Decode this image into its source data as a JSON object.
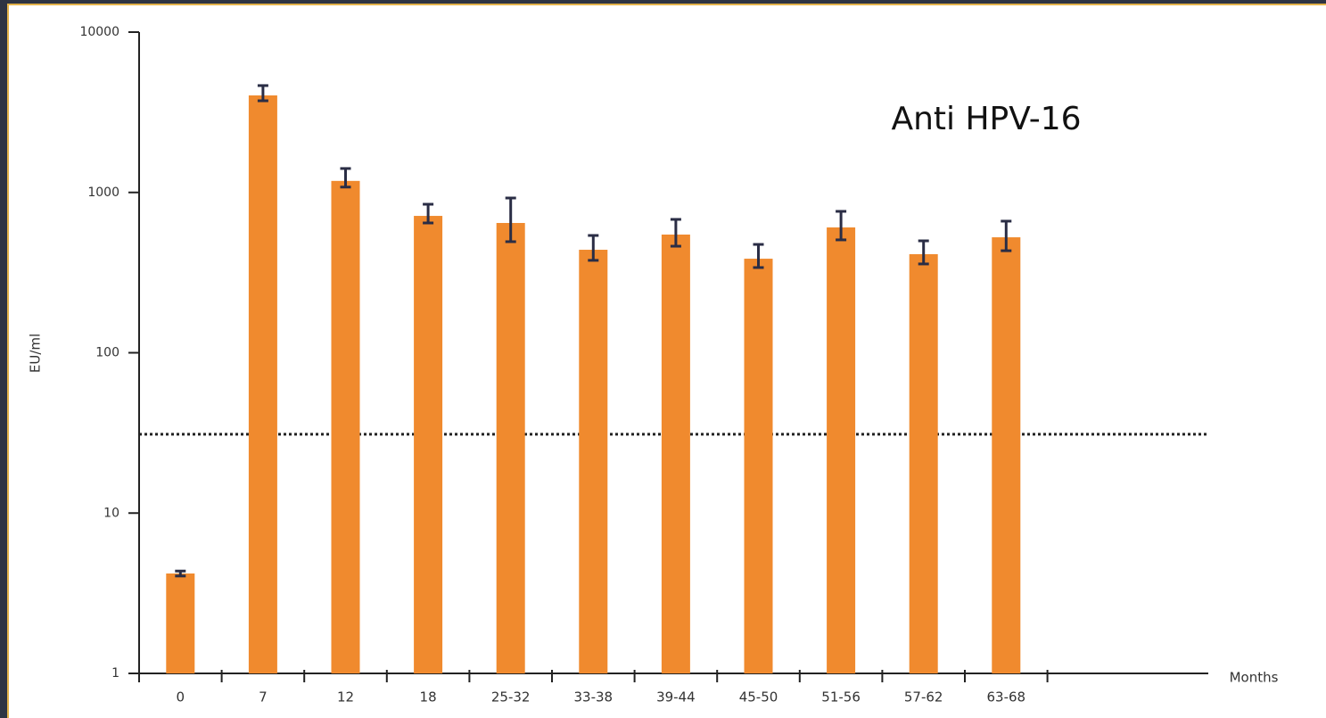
{
  "chart_data": {
    "type": "bar",
    "annotation": "Anti HPV-16",
    "xlabel": "Months",
    "ylabel": "EU/ml",
    "categories": [
      "0",
      "7",
      "12",
      "18",
      "25-32",
      "33-38",
      "39-44",
      "45-50",
      "51-56",
      "57-62",
      "63-68"
    ],
    "values": [
      4.2,
      4030,
      1180,
      714,
      645,
      439,
      546,
      386,
      605,
      412,
      525
    ],
    "error_low": [
      4.05,
      3730,
      1080,
      645,
      493,
      377,
      462,
      340,
      506,
      358,
      433
    ],
    "error_high": [
      4.35,
      4640,
      1410,
      844,
      923,
      539,
      679,
      474,
      762,
      499,
      662
    ],
    "color": "#f08a2e",
    "error_color": "#2a2d45",
    "threshold": 31,
    "log_y": true,
    "ylim": [
      1,
      10000
    ],
    "yticks": [
      1,
      10,
      100,
      1000,
      10000
    ]
  }
}
